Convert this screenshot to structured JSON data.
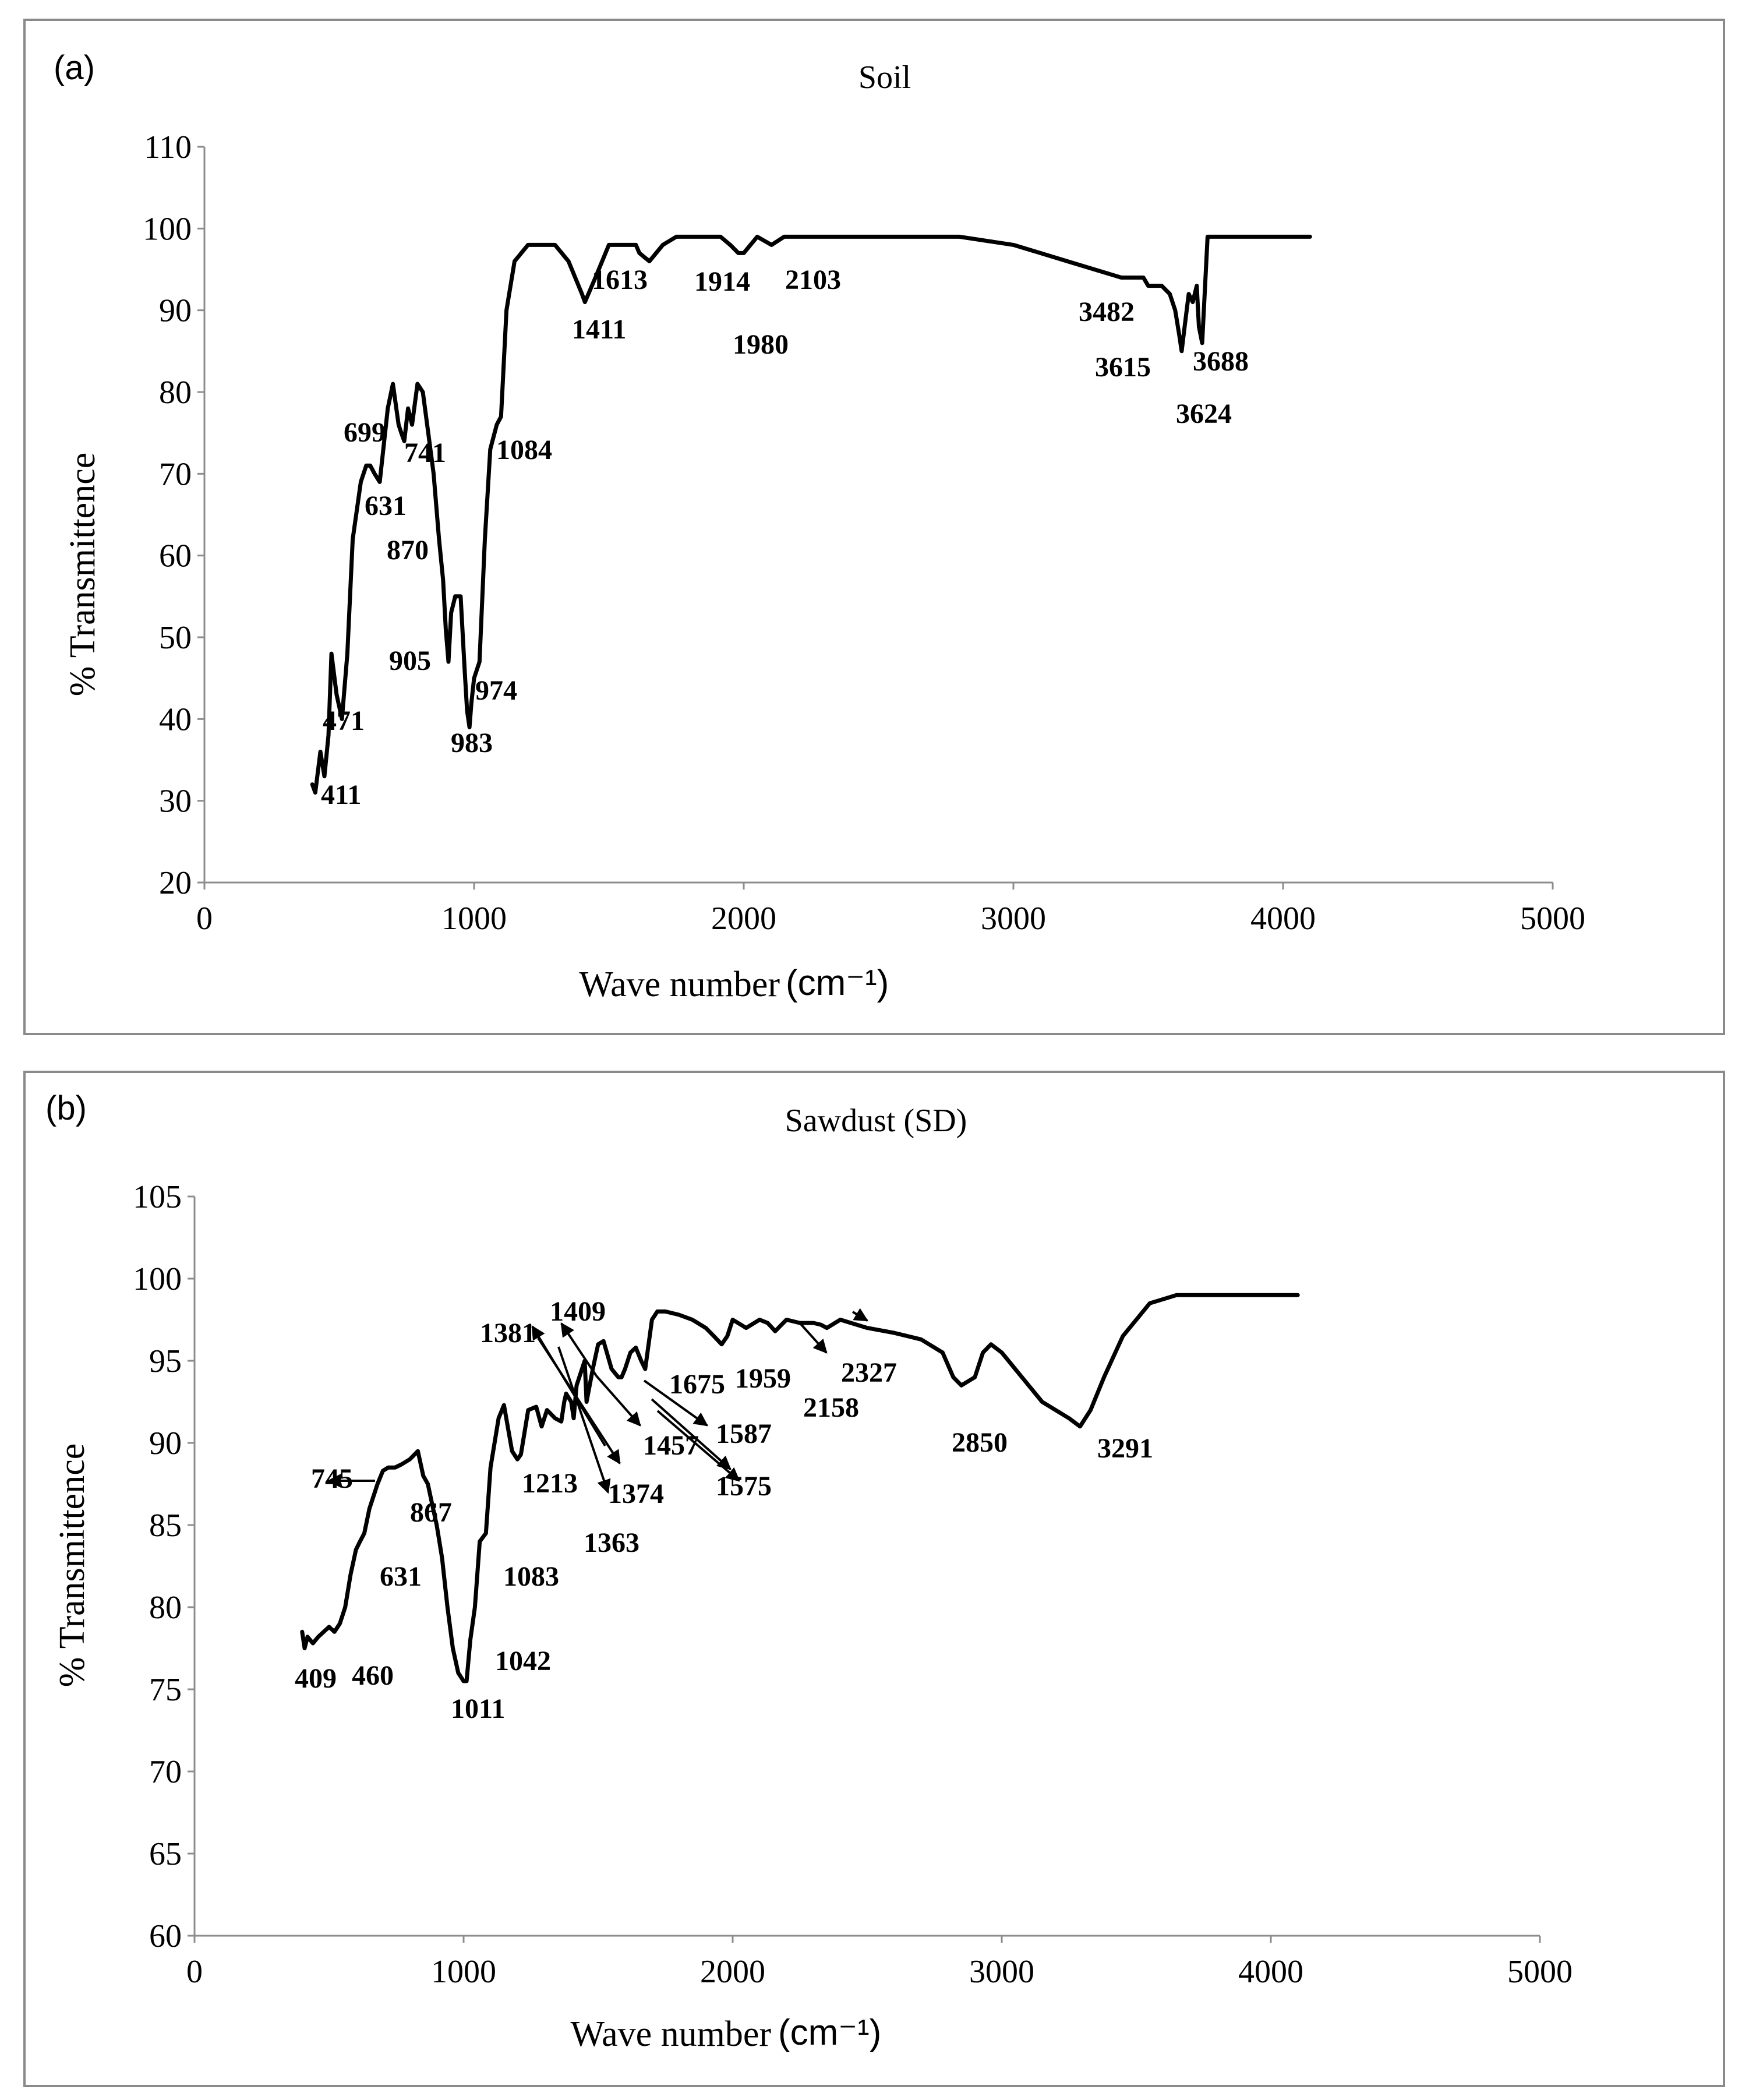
{
  "chart_data": [
    {
      "type": "line",
      "panel_label": "(a)",
      "title": "Soil",
      "xlabel": "Wave number",
      "xunit": "(cm⁻¹)",
      "ylabel": "% Transmittence",
      "xlim": [
        0,
        5000
      ],
      "ylim": [
        20,
        110
      ],
      "xticks": [
        0,
        1000,
        2000,
        3000,
        4000,
        5000
      ],
      "yticks": [
        20,
        30,
        40,
        50,
        60,
        70,
        80,
        90,
        100,
        110
      ],
      "series": [
        {
          "name": "Soil",
          "x": [
            400,
            411,
            430,
            445,
            460,
            471,
            490,
            510,
            530,
            550,
            580,
            600,
            615,
            631,
            650,
            680,
            699,
            720,
            730,
            741,
            755,
            770,
            790,
            810,
            830,
            850,
            870,
            885,
            895,
            905,
            915,
            930,
            950,
            965,
            974,
            983,
            990,
            1000,
            1020,
            1040,
            1060,
            1084,
            1100,
            1120,
            1150,
            1200,
            1250,
            1300,
            1350,
            1400,
            1411,
            1450,
            1500,
            1550,
            1600,
            1613,
            1650,
            1700,
            1750,
            1800,
            1850,
            1900,
            1914,
            1950,
            1980,
            2000,
            2050,
            2103,
            2150,
            2200,
            2300,
            2400,
            2600,
            2800,
            3000,
            3100,
            3200,
            3300,
            3400,
            3482,
            3500,
            3550,
            3580,
            3600,
            3615,
            3624,
            3635,
            3650,
            3665,
            3680,
            3688,
            3700,
            3720,
            3800,
            4000,
            4100
          ],
          "y": [
            32,
            31,
            36,
            33,
            38,
            48,
            43,
            40,
            48,
            62,
            69,
            71,
            71,
            70,
            69,
            78,
            81,
            76,
            75,
            74,
            78,
            76,
            81,
            80,
            75,
            70,
            62,
            57,
            51,
            47,
            53,
            55,
            55,
            46,
            41,
            39,
            42,
            45,
            47,
            62,
            73,
            76,
            77,
            90,
            96,
            98,
            98,
            98,
            96,
            92,
            91,
            94,
            98,
            98,
            98,
            97,
            96,
            98,
            99,
            99,
            99,
            99,
            99,
            98,
            97,
            97,
            99,
            98,
            99,
            99,
            99,
            99,
            99,
            99,
            98,
            97,
            96,
            95,
            94,
            94,
            93,
            93,
            92,
            90,
            87,
            85,
            88,
            92,
            91,
            93,
            88,
            86,
            99,
            99,
            99,
            99
          ]
        }
      ],
      "annotations": [
        "411",
        "471",
        "631",
        "699",
        "741",
        "870",
        "905",
        "974",
        "983",
        "1084",
        "1411",
        "1613",
        "1914",
        "1980",
        "2103",
        "3482",
        "3615",
        "3624",
        "3688"
      ]
    },
    {
      "type": "line",
      "panel_label": "(b)",
      "title": "Sawdust (SD)",
      "xlabel": "Wave number",
      "xunit": "(cm⁻¹)",
      "ylabel": "% Transmittence",
      "xlim": [
        0,
        5000
      ],
      "ylim": [
        60,
        105
      ],
      "xticks": [
        0,
        1000,
        2000,
        3000,
        4000,
        5000
      ],
      "yticks": [
        60,
        65,
        70,
        75,
        80,
        85,
        90,
        95,
        100,
        105
      ],
      "series": [
        {
          "name": "Sawdust (SD)",
          "x": [
            400,
            409,
            420,
            440,
            460,
            480,
            500,
            520,
            540,
            560,
            580,
            600,
            615,
            631,
            650,
            680,
            700,
            720,
            745,
            770,
            800,
            830,
            850,
            867,
            880,
            900,
            920,
            940,
            960,
            980,
            1000,
            1011,
            1025,
            1042,
            1060,
            1083,
            1100,
            1130,
            1150,
            1180,
            1200,
            1213,
            1240,
            1270,
            1290,
            1310,
            1340,
            1363,
            1374,
            1381,
            1400,
            1409,
            1420,
            1450,
            1457,
            1480,
            1500,
            1520,
            1550,
            1575,
            1587,
            1600,
            1620,
            1640,
            1660,
            1675,
            1700,
            1720,
            1750,
            1800,
            1850,
            1900,
            1930,
            1959,
            1980,
            2000,
            2050,
            2100,
            2130,
            2158,
            2170,
            2200,
            2250,
            2300,
            2327,
            2350,
            2400,
            2500,
            2600,
            2700,
            2780,
            2820,
            2850,
            2900,
            2930,
            2960,
            3000,
            3050,
            3100,
            3150,
            3200,
            3250,
            3291,
            3330,
            3380,
            3450,
            3550,
            3650,
            3700,
            3800,
            3900,
            4000,
            4100
          ],
          "y": [
            78.5,
            77.5,
            78.2,
            77.8,
            78.2,
            78.5,
            78.8,
            78.5,
            79,
            80,
            82,
            83.5,
            84,
            84.5,
            86,
            87.5,
            88.3,
            88.5,
            88.5,
            88.7,
            89,
            89.5,
            88,
            87.5,
            86.5,
            85,
            83,
            80,
            77.5,
            76,
            75.5,
            75.5,
            78,
            80,
            84,
            84.5,
            88.5,
            91.5,
            92.3,
            89.5,
            89,
            89.3,
            92,
            92.2,
            91,
            92,
            91.5,
            91.3,
            92.5,
            93,
            92.5,
            91.5,
            93.5,
            95,
            92.5,
            94.5,
            96,
            96.2,
            94.5,
            94,
            94,
            94.5,
            95.5,
            95.8,
            95,
            94.5,
            97.5,
            98,
            98,
            97.8,
            97.5,
            97,
            96.5,
            96,
            96.5,
            97.5,
            97,
            97.5,
            97.3,
            96.8,
            97,
            97.5,
            97.3,
            97.3,
            97.2,
            97,
            97.5,
            97,
            96.7,
            96.3,
            95.5,
            94,
            93.5,
            94,
            95.5,
            96,
            95.5,
            94.5,
            93.5,
            92.5,
            92,
            91.5,
            91,
            92,
            94,
            96.5,
            98.5,
            99,
            99,
            99,
            99,
            99,
            99
          ]
        }
      ],
      "annotations": [
        "409",
        "460",
        "631",
        "745",
        "867",
        "1011",
        "1042",
        "1083",
        "1213",
        "1363",
        "1374",
        "1381",
        "1409",
        "1457",
        "1575",
        "1587",
        "1675",
        "1959",
        "2158",
        "2327",
        "2850",
        "3291"
      ]
    }
  ]
}
